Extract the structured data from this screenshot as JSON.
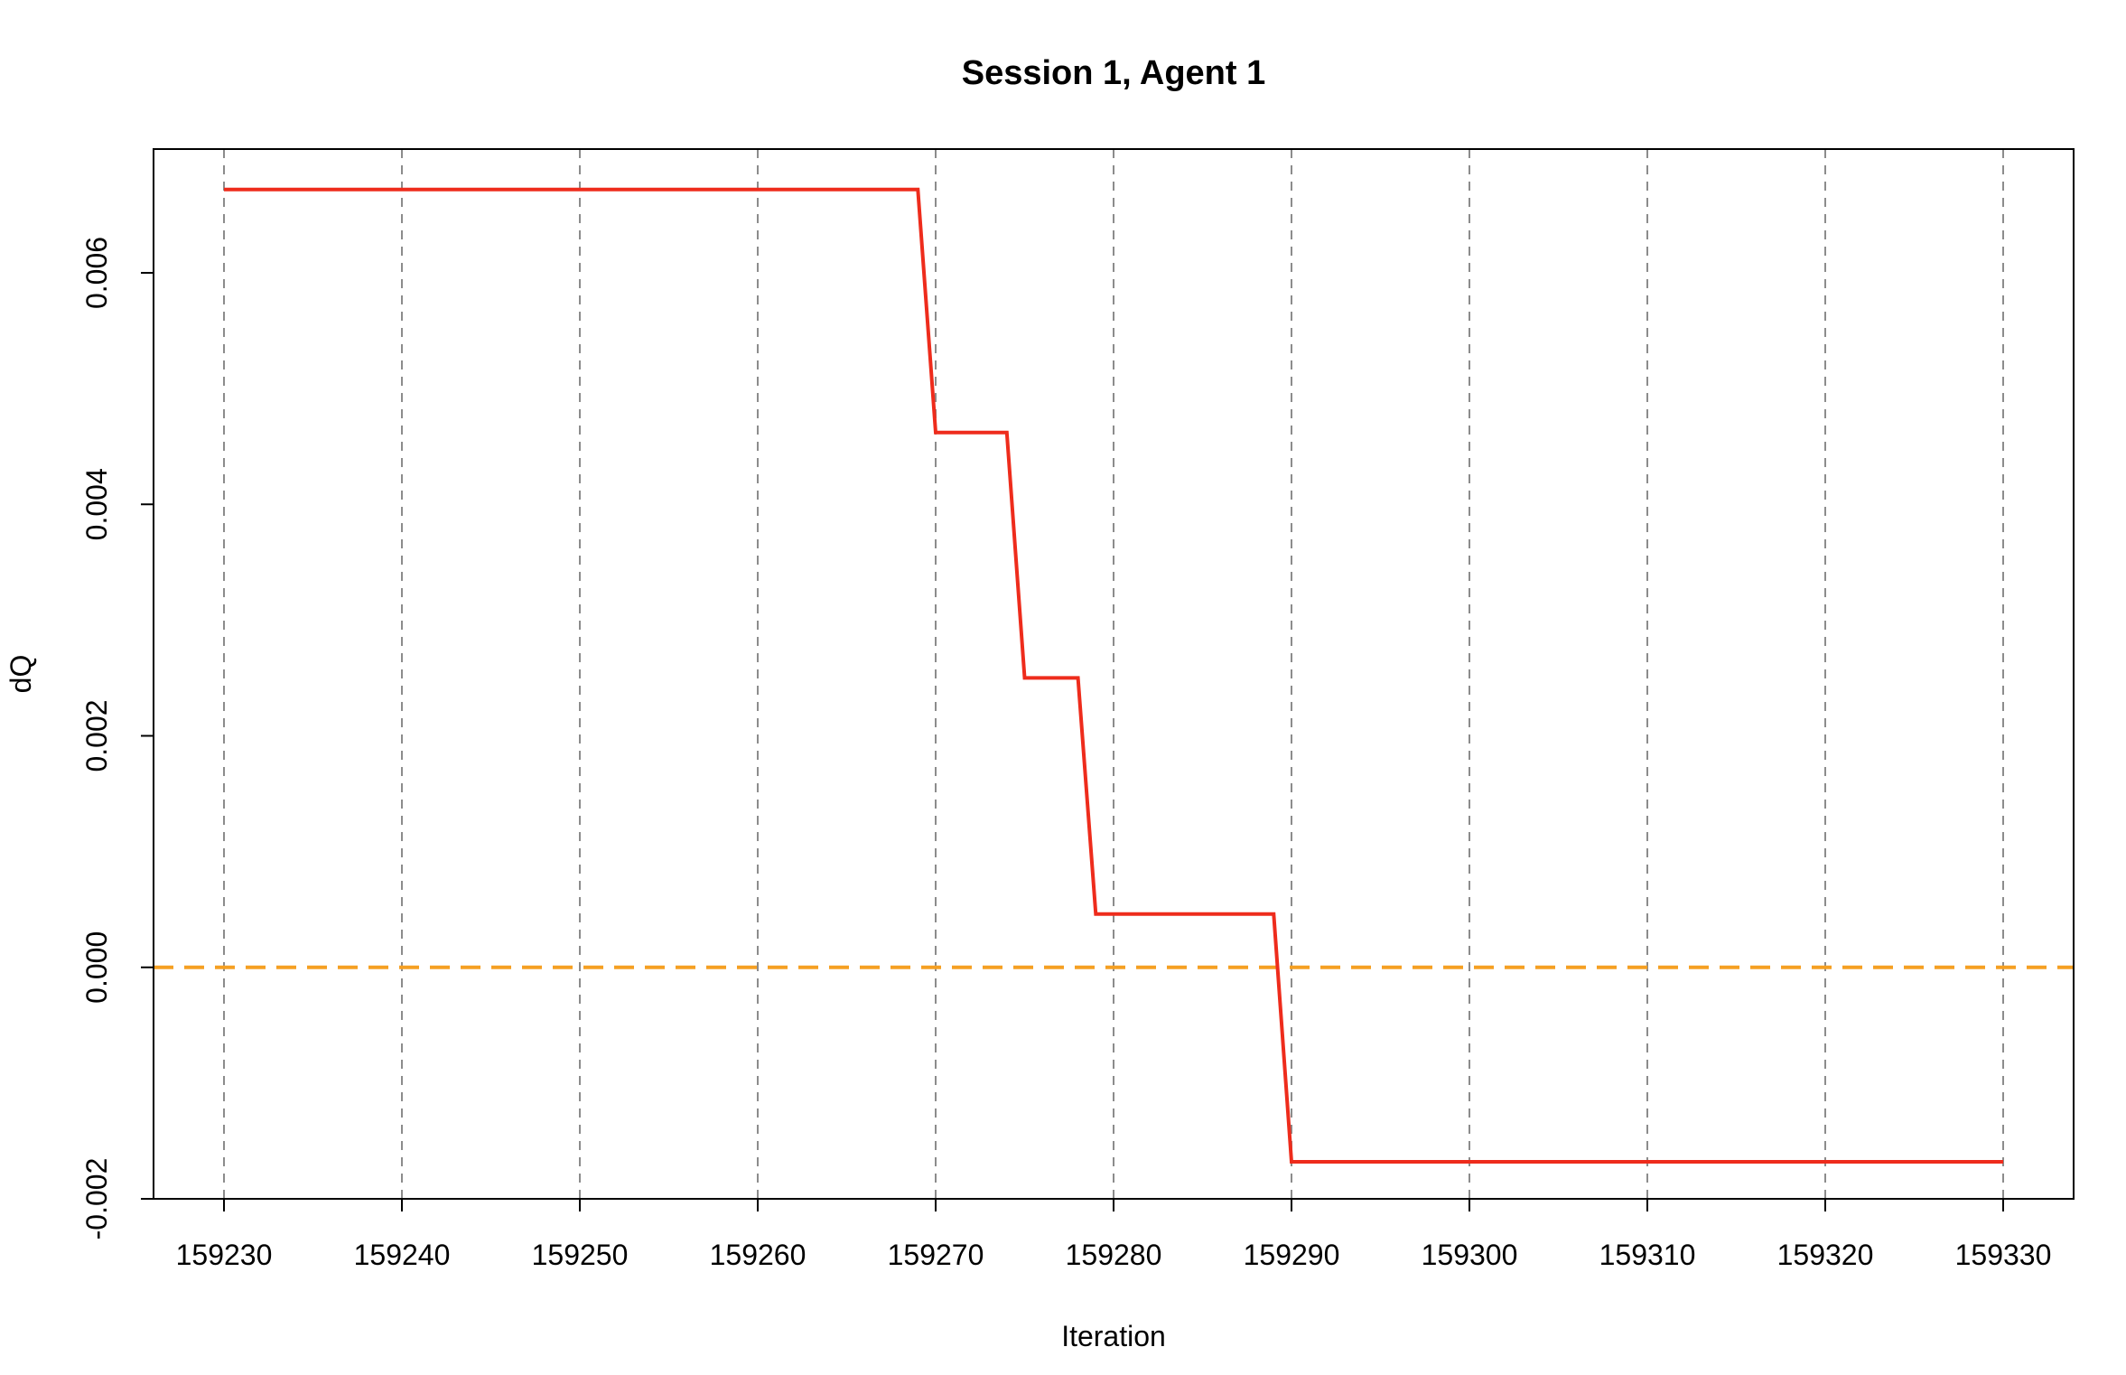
{
  "chart_data": {
    "type": "line",
    "title": "Session 1, Agent 1",
    "xlabel": "Iteration",
    "ylabel": "dQ",
    "xlim": [
      159226,
      159334
    ],
    "ylim": [
      -0.002,
      0.007
    ],
    "xticks": [
      159230,
      159240,
      159250,
      159260,
      159270,
      159280,
      159290,
      159300,
      159310,
      159320,
      159330
    ],
    "xtick_labels": [
      "159230",
      "159240",
      "159250",
      "159260",
      "159270",
      "159280",
      "159290",
      "159300",
      "159310",
      "159320",
      "159330"
    ],
    "yticks": [
      -0.002,
      0,
      0.002,
      0.004,
      0.006
    ],
    "ytick_labels": [
      "-0.002",
      "0.000",
      "0.002",
      "0.004",
      "0.006"
    ],
    "grid": "vertical-dashed",
    "reference_line": {
      "y": 0,
      "color": "#f5a023",
      "style": "dashed"
    },
    "series": [
      {
        "color": "#ee2c1c",
        "points": [
          [
            159230,
            0.00672
          ],
          [
            159269,
            0.00672
          ],
          [
            159270,
            0.00462
          ],
          [
            159274,
            0.00462
          ],
          [
            159275,
            0.0025
          ],
          [
            159278,
            0.0025
          ],
          [
            159279,
            0.00046
          ],
          [
            159289,
            0.00046
          ],
          [
            159290,
            -0.00168
          ],
          [
            159330,
            -0.00168
          ]
        ]
      }
    ],
    "colors": {
      "grid": "#8c8c8c",
      "axis": "#000000"
    }
  }
}
